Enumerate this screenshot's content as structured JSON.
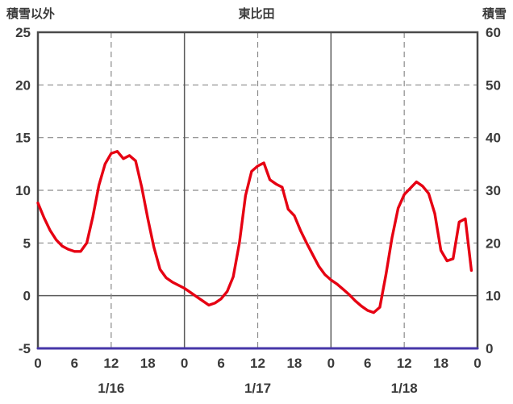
{
  "header": {
    "left_label": "積雪以外",
    "title": "東比田",
    "right_label": "積雪"
  },
  "colors": {
    "text": "#3a3a3a",
    "border": "#4a4a4a",
    "grid": "#8a8a8a",
    "zero_line": "#5a5a5a",
    "temperature_line": "#e60012",
    "snow_line": "#4636a8",
    "background": "#ffffff"
  },
  "chart_data": {
    "type": "line",
    "title": "東比田",
    "left_axis": {
      "label": "積雪以外",
      "min": -5,
      "max": 25,
      "ticks": [
        25,
        20,
        15,
        10,
        5,
        0,
        -5
      ]
    },
    "right_axis": {
      "label": "積雪",
      "min": 0,
      "max": 60,
      "ticks": [
        60,
        50,
        40,
        30,
        20,
        10,
        0
      ]
    },
    "x_axis": {
      "hours_total": 72,
      "hour_ticks": [
        "0",
        "6",
        "12",
        "18",
        "0",
        "6",
        "12",
        "18",
        "0",
        "6",
        "12",
        "18",
        "0"
      ],
      "day_labels": [
        "1/16",
        "1/17",
        "1/18"
      ],
      "day_label_hours": [
        12,
        36,
        60
      ]
    },
    "grid": {
      "h_dashed": [
        20,
        15,
        10,
        5
      ],
      "h_solid": [
        0
      ],
      "v_dashed_hours": [
        12,
        36,
        60
      ],
      "v_solid_hours": [
        24,
        48
      ]
    },
    "series": [
      {
        "name": "積雪以外",
        "axis": "left",
        "color": "#e60012",
        "width": 3.4,
        "values": [
          8.8,
          7.4,
          6.2,
          5.3,
          4.7,
          4.4,
          4.2,
          4.2,
          5.0,
          7.5,
          10.5,
          12.5,
          13.5,
          13.7,
          13.0,
          13.3,
          12.8,
          10.3,
          7.3,
          4.6,
          2.5,
          1.7,
          1.3,
          1.0,
          0.7,
          0.3,
          -0.1,
          -0.5,
          -0.9,
          -0.7,
          -0.3,
          0.4,
          1.8,
          5.0,
          9.5,
          11.8,
          12.3,
          12.6,
          11.0,
          10.6,
          10.3,
          8.2,
          7.6,
          6.2,
          5.0,
          3.9,
          2.8,
          2.0,
          1.5,
          1.1,
          0.6,
          0.1,
          -0.5,
          -1.0,
          -1.4,
          -1.6,
          -1.1,
          2.0,
          5.5,
          8.3,
          9.6,
          10.2,
          10.8,
          10.4,
          9.7,
          7.8,
          4.3,
          3.3,
          3.5,
          7.0,
          7.3,
          2.4
        ]
      },
      {
        "name": "積雪",
        "axis": "right",
        "color": "#4636a8",
        "width": 3,
        "x": [
          0,
          72
        ],
        "values": [
          0,
          0
        ]
      }
    ]
  }
}
